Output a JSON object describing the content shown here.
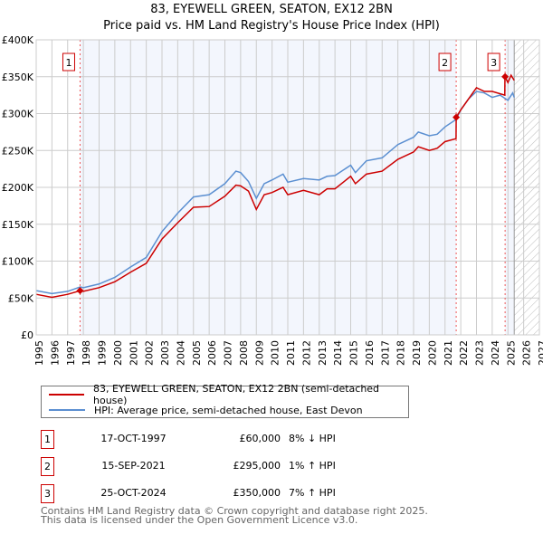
{
  "chart_data": {
    "type": "line",
    "title": "83, EYEWELL GREEN, SEATON, EX12 2BN",
    "subtitle": "Price paid vs. HM Land Registry's House Price Index (HPI)",
    "xlim": [
      1995,
      2027
    ],
    "ylim": [
      0,
      400000
    ],
    "x_ticks": [
      "1995",
      "1996",
      "1997",
      "1998",
      "1999",
      "2000",
      "2001",
      "2002",
      "2003",
      "2004",
      "2005",
      "2006",
      "2007",
      "2008",
      "2009",
      "2010",
      "2011",
      "2012",
      "2013",
      "2014",
      "2015",
      "2016",
      "2017",
      "2018",
      "2019",
      "2020",
      "2021",
      "2022",
      "2023",
      "2024",
      "2025",
      "2026",
      "2027"
    ],
    "y_ticks": [
      "£0",
      "£50K",
      "£100K",
      "£150K",
      "£200K",
      "£250K",
      "£300K",
      "£350K",
      "£400K"
    ],
    "grid": true,
    "series": [
      {
        "name": "83, EYEWELL GREEN, SEATON, EX12 2BN (semi-detached house)",
        "color": "#cc0000",
        "x": [
          1995,
          1996,
          1997,
          1997.8,
          1998,
          1999,
          2000,
          2001,
          2002,
          2003,
          2004,
          2005,
          2006,
          2007,
          2007.7,
          2008,
          2008.5,
          2009,
          2009.5,
          2010,
          2010.7,
          2011,
          2012,
          2013,
          2013.5,
          2014,
          2015,
          2015.3,
          2016,
          2017,
          2018,
          2019,
          2019.3,
          2020,
          2020.5,
          2021,
          2021.7,
          2021.71,
          2022,
          2022.5,
          2023,
          2023.5,
          2024,
          2024.8,
          2024.81,
          2025,
          2025.2,
          2025.4
        ],
        "y": [
          55,
          51,
          55,
          60,
          59,
          64,
          72,
          85,
          97,
          130,
          152,
          173,
          174,
          188,
          203,
          202,
          195,
          170,
          190,
          193,
          200,
          190,
          196,
          190,
          198,
          198,
          215,
          205,
          218,
          222,
          238,
          248,
          255,
          250,
          253,
          262,
          266,
          295,
          305,
          320,
          335,
          330,
          330,
          325,
          350,
          342,
          352,
          345
        ]
      },
      {
        "name": "HPI: Average price, semi-detached house, East Devon",
        "color": "#5b8fd1",
        "x": [
          1995,
          1996,
          1997,
          1997.8,
          1998,
          1999,
          2000,
          2001,
          2002,
          2003,
          2004,
          2005,
          2006,
          2007,
          2007.7,
          2008,
          2008.5,
          2009,
          2009.5,
          2010,
          2010.7,
          2011,
          2012,
          2013,
          2013.5,
          2014,
          2015,
          2015.3,
          2016,
          2017,
          2018,
          2019,
          2019.3,
          2020,
          2020.5,
          2021,
          2021.7,
          2022,
          2022.5,
          2023,
          2023.5,
          2024,
          2024.5,
          2025,
          2025.3,
          2025.4
        ],
        "y": [
          60,
          56,
          59,
          65,
          64,
          69,
          78,
          92,
          105,
          140,
          165,
          187,
          190,
          205,
          222,
          220,
          208,
          185,
          205,
          210,
          218,
          207,
          212,
          210,
          215,
          216,
          230,
          220,
          236,
          240,
          258,
          268,
          275,
          270,
          272,
          282,
          292,
          305,
          320,
          330,
          328,
          322,
          325,
          318,
          328,
          322
        ]
      }
    ],
    "y_unit": "thousands GBP",
    "sales": [
      {
        "label": "1",
        "x": 1997.79,
        "y": 60,
        "date": "17-OCT-1997",
        "price": "£60,000",
        "hpi": "8% ↓ HPI"
      },
      {
        "label": "2",
        "x": 2021.71,
        "y": 295,
        "date": "15-SEP-2021",
        "price": "£295,000",
        "hpi": "1% ↑ HPI"
      },
      {
        "label": "3",
        "x": 2024.82,
        "y": 350,
        "date": "25-OCT-2024",
        "price": "£350,000",
        "hpi": "7% ↑ HPI"
      }
    ],
    "forecast_start": 2025.4,
    "legend_position": "bottom"
  },
  "footer": {
    "line1": "Contains HM Land Registry data © Crown copyright and database right 2025.",
    "line2": "This data is licensed under the Open Government Licence v3.0."
  }
}
